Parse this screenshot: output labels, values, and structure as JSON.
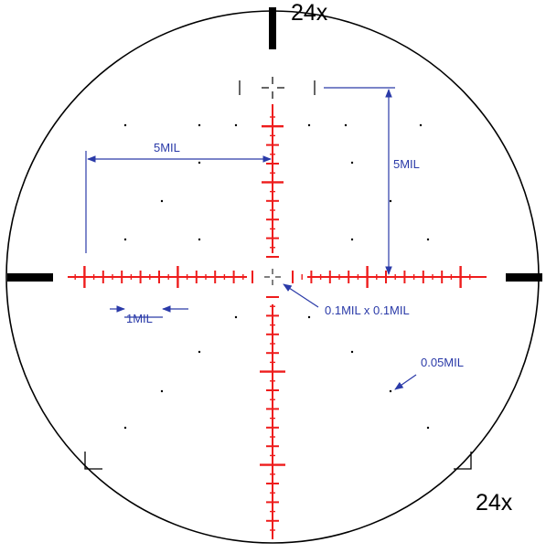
{
  "magnification_top": "24x",
  "magnification_corner": "24x",
  "labels": {
    "five_mil_horizontal": "5MIL",
    "five_mil_vertical": "5MIL",
    "one_mil": "1MIL",
    "center_cross": "0.1MIL x 0.1MIL",
    "dot": "0.05MIL"
  },
  "colors": {
    "reticle_red": "#ee1c1c",
    "annotation_blue": "#2a3aa8",
    "outline_black": "#000000"
  }
}
